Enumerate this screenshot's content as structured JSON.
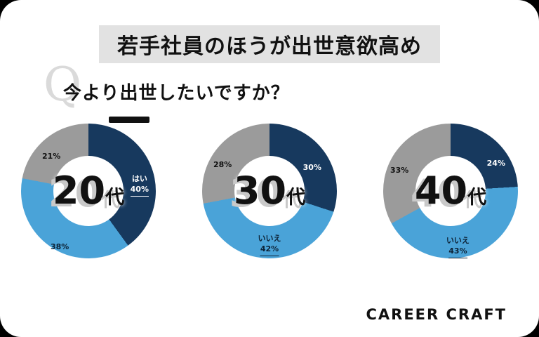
{
  "header": {
    "title": "若手社員のほうが出世意欲高め"
  },
  "question": {
    "mark": "Q",
    "text": "今より出世したいですか？"
  },
  "colors": {
    "yes": "#17395e",
    "no": "#4aa3d8",
    "other": "#9b9b9b"
  },
  "charts": [
    {
      "age_value": "20",
      "age_suffix": "代",
      "yes": {
        "name": "はい",
        "pct": "40%"
      },
      "no": {
        "name": "",
        "pct": "38%"
      },
      "other": {
        "name": "",
        "pct": "21%"
      }
    },
    {
      "age_value": "30",
      "age_suffix": "代",
      "yes": {
        "name": "",
        "pct": "30%"
      },
      "no": {
        "name": "いいえ",
        "pct": "42%"
      },
      "other": {
        "name": "",
        "pct": "28%"
      }
    },
    {
      "age_value": "40",
      "age_suffix": "代",
      "yes": {
        "name": "",
        "pct": "24%"
      },
      "no": {
        "name": "いいえ",
        "pct": "43%"
      },
      "other": {
        "name": "",
        "pct": "33%"
      }
    }
  ],
  "chart_data": [
    {
      "type": "pie",
      "title": "20代",
      "question": "今より出世したいですか？",
      "labels": [
        "はい",
        "いいえ",
        ""
      ],
      "values": [
        40,
        38,
        21
      ],
      "colors": [
        "#17395e",
        "#4aa3d8",
        "#9b9b9b"
      ],
      "donut": true
    },
    {
      "type": "pie",
      "title": "30代",
      "question": "今より出世したいですか？",
      "labels": [
        "はい",
        "いいえ",
        ""
      ],
      "values": [
        30,
        42,
        28
      ],
      "colors": [
        "#17395e",
        "#4aa3d8",
        "#9b9b9b"
      ],
      "donut": true
    },
    {
      "type": "pie",
      "title": "40代",
      "question": "今より出世したいですか？",
      "labels": [
        "はい",
        "いいえ",
        ""
      ],
      "values": [
        24,
        43,
        33
      ],
      "colors": [
        "#17395e",
        "#4aa3d8",
        "#9b9b9b"
      ],
      "donut": true
    }
  ],
  "logo": {
    "text": "CAREER CRAFT"
  }
}
